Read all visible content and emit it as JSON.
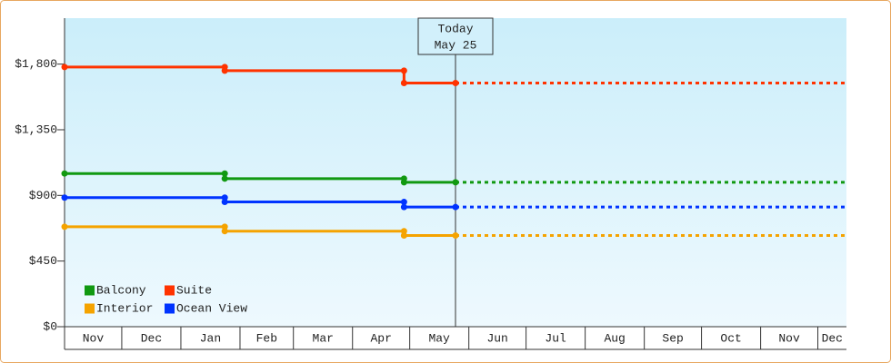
{
  "chart_data": {
    "type": "step-line",
    "x": [
      0,
      84,
      178,
      205
    ],
    "xlim": [
      0,
      410
    ],
    "xticks": [
      {
        "value": 0,
        "label": "Nov"
      },
      {
        "value": 30,
        "label": "Dec"
      },
      {
        "value": 61,
        "label": "Jan"
      },
      {
        "value": 92,
        "label": "Feb"
      },
      {
        "value": 120,
        "label": "Mar"
      },
      {
        "value": 151,
        "label": "Apr"
      },
      {
        "value": 181,
        "label": "May"
      },
      {
        "value": 212,
        "label": "Jun"
      },
      {
        "value": 242,
        "label": "Jul"
      },
      {
        "value": 273,
        "label": "Aug"
      },
      {
        "value": 304,
        "label": "Sep"
      },
      {
        "value": 334,
        "label": "Oct"
      },
      {
        "value": 365,
        "label": "Nov"
      },
      {
        "value": 395,
        "label": "Dec"
      }
    ],
    "ylim": [
      0,
      2115
    ],
    "yticks": [
      {
        "value": 0,
        "label": "$0"
      },
      {
        "value": 450,
        "label": "$450"
      },
      {
        "value": 900,
        "label": "$900"
      },
      {
        "value": 1350,
        "label": "$1,350"
      },
      {
        "value": 1800,
        "label": "$1,800"
      }
    ],
    "today": {
      "x": 205,
      "label": [
        "Today",
        "May 25"
      ]
    },
    "series": [
      {
        "name": "Balcony",
        "color": "#119911",
        "values": [
          1050,
          1015,
          990,
          990
        ]
      },
      {
        "name": "Suite",
        "color": "#ff3300",
        "values": [
          1780,
          1755,
          1670,
          1670
        ]
      },
      {
        "name": "Interior",
        "color": "#f5a300",
        "values": [
          685,
          655,
          625,
          625
        ]
      },
      {
        "name": "Ocean View",
        "color": "#0033ff",
        "values": [
          885,
          855,
          820,
          820
        ]
      }
    ]
  }
}
